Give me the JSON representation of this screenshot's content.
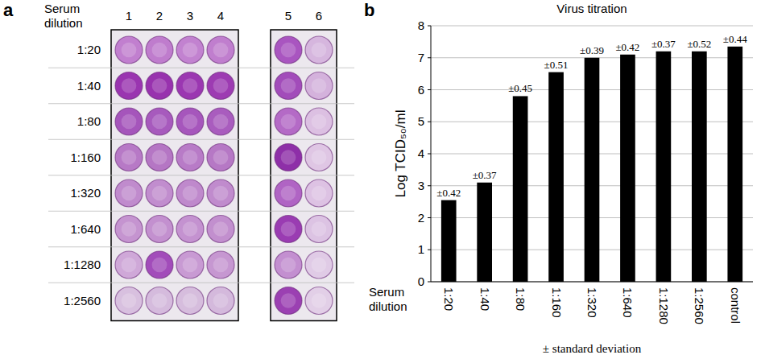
{
  "panel_a": {
    "letter": "a",
    "row_header": "Serum dilution",
    "columns": [
      "1",
      "2",
      "3",
      "4",
      "5",
      "6"
    ],
    "rows": [
      {
        "dilution": "1:20",
        "wells": [
          "#c17fcf",
          "#bf7ccd",
          "#c282d0",
          "#c07ece",
          "#a955c0",
          "#d6b6de"
        ]
      },
      {
        "dilution": "1:40",
        "wells": [
          "#9a35b0",
          "#9832ae",
          "#9b37b1",
          "#9d3bb2",
          "#a24cba",
          "#d4b2dc"
        ]
      },
      {
        "dilution": "1:80",
        "wells": [
          "#a555bb",
          "#a75abd",
          "#a656bc",
          "#a95cbe",
          "#b46ac6",
          "#dcc0e2"
        ]
      },
      {
        "dilution": "1:160",
        "wells": [
          "#b779c6",
          "#b576c4",
          "#b87bc7",
          "#b678c5",
          "#8e2fa8",
          "#dfc6e4"
        ]
      },
      {
        "dilution": "1:320",
        "wells": [
          "#c08bcd",
          "#c18dce",
          "#bf89cc",
          "#c08bcd",
          "#b064c4",
          "#ddc2e3"
        ]
      },
      {
        "dilution": "1:640",
        "wells": [
          "#c594d0",
          "#c390cf",
          "#c492d0",
          "#c28fce",
          "#9a3cb2",
          "#dcc3e3"
        ]
      },
      {
        "dilution": "1:1280",
        "wells": [
          "#cfa8d8",
          "#a24cba",
          "#c89ad3",
          "#c697d1",
          "#c38fd0",
          "#e0cbe6"
        ]
      },
      {
        "dilution": "1:2560",
        "wells": [
          "#d8c0df",
          "#d5bbdd",
          "#d6bddd",
          "#d4b9dc",
          "#9b40b2",
          "#e2cfe7"
        ]
      }
    ]
  },
  "chart_data": {
    "type": "bar",
    "letter": "b",
    "title": "Virus titration",
    "y_label": "Log TCID₅₀/ml",
    "x_label": "Serum dilution",
    "note": "± standard deviation",
    "categories": [
      "1:20",
      "1:40",
      "1:80",
      "1:160",
      "1:320",
      "1:640",
      "1:1280",
      "1:2560",
      "control"
    ],
    "values": [
      2.55,
      3.1,
      5.8,
      6.55,
      7.0,
      7.1,
      7.2,
      7.2,
      7.35
    ],
    "errors": [
      0.42,
      0.37,
      0.45,
      0.51,
      0.39,
      0.42,
      0.37,
      0.52,
      0.44
    ],
    "error_labels": [
      "±0.42",
      "±0.37",
      "±0.45",
      "±0.51",
      "±0.39",
      "±0.42",
      "±0.37",
      "±0.52",
      "±0.44"
    ],
    "color": "#000000",
    "ylim": [
      0,
      8
    ],
    "yticks": [
      0,
      1,
      2,
      3,
      4,
      5,
      6,
      7,
      8
    ],
    "grid": true
  }
}
